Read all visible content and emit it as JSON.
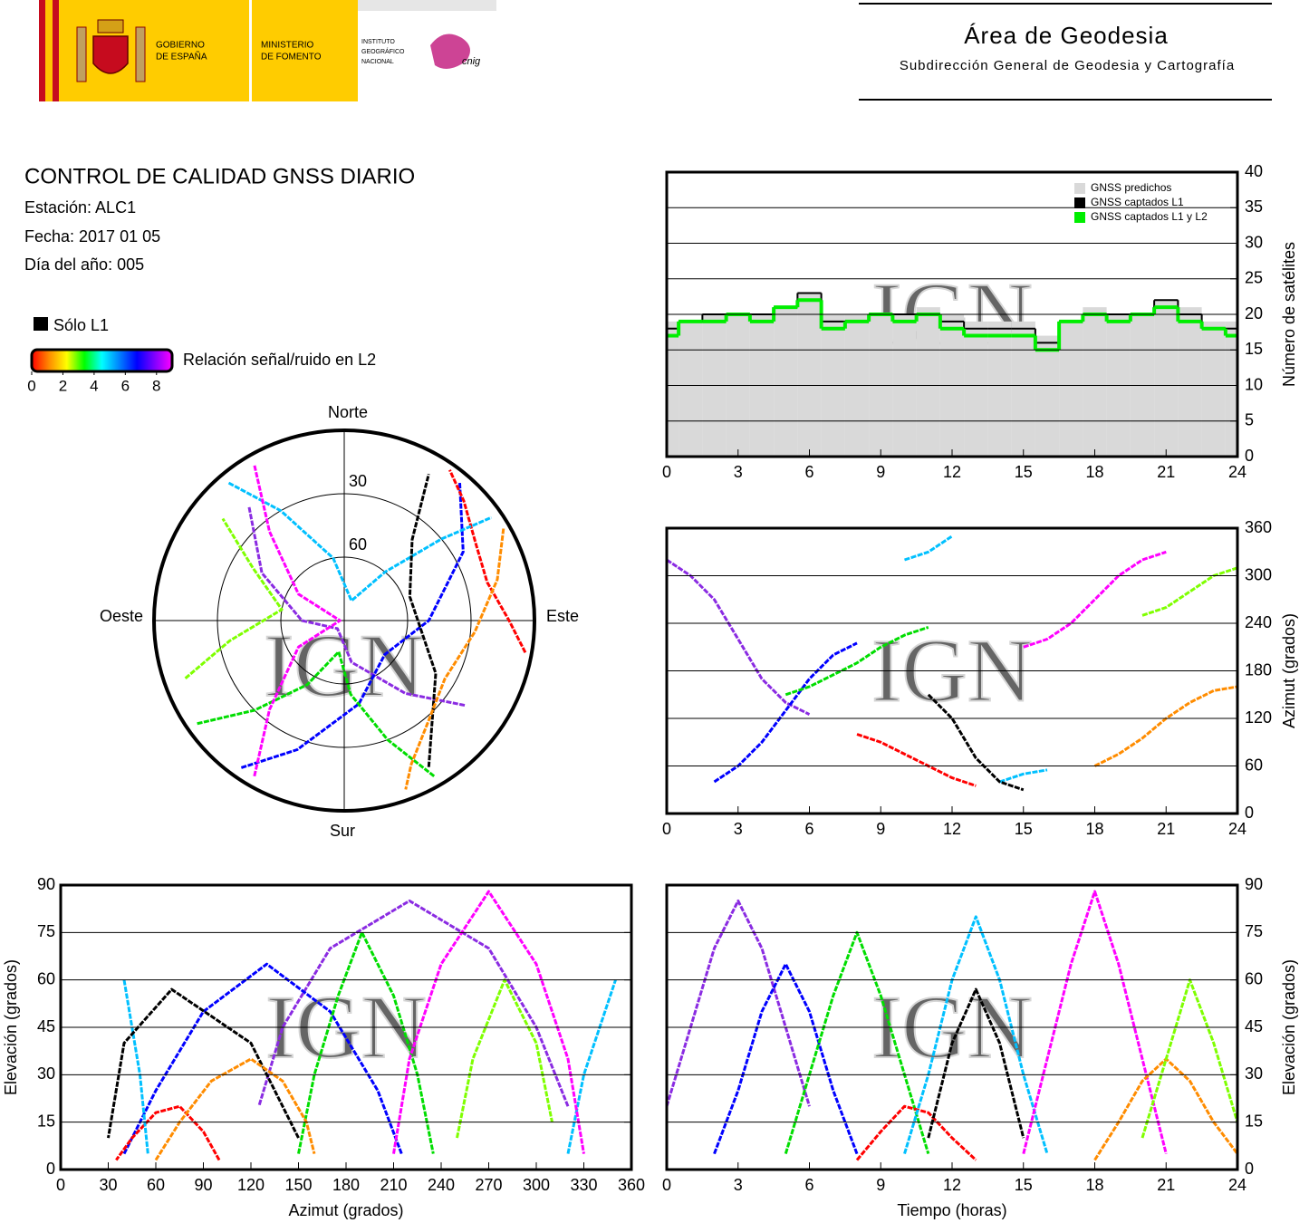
{
  "header": {
    "logos": {
      "gobierno": [
        "GOBIERNO",
        "DE ESPAÑA"
      ],
      "ministerio": [
        "MINISTERIO",
        "DE FOMENTO"
      ],
      "instituto": [
        "INSTITUTO",
        "GEOGRÁFICO",
        "NACIONAL"
      ],
      "cnig": "cnig"
    },
    "title": "Área de Geodesia",
    "subtitle": "Subdirección General de Geodesia y Cartografía"
  },
  "report": {
    "title": "CONTROL DE CALIDAD GNSS DIARIO",
    "lines": [
      "Estación: ALC1",
      "Fecha: 2017 01 05",
      "Día del año: 005"
    ],
    "l1_only": "Sólo L1",
    "colorbar": {
      "label": "Relación señal/ruido en L2",
      "lim": [
        0,
        9
      ],
      "ticks": [
        0,
        2,
        4,
        6,
        8
      ],
      "colors": [
        "#ff0000",
        "#ff8c00",
        "#ffff00",
        "#00ff00",
        "#00ffff",
        "#0080ff",
        "#0000ff",
        "#8000ff",
        "#ff00ff"
      ]
    }
  },
  "chart_data": [
    {
      "type": "step",
      "x": [
        0,
        1,
        2,
        3,
        4,
        5,
        6,
        7,
        8,
        9,
        10,
        11,
        12,
        13,
        14,
        15,
        16,
        17,
        18,
        19,
        20,
        21,
        22,
        23,
        24
      ],
      "xlim": [
        0,
        24
      ],
      "xticks": [
        0,
        3,
        6,
        9,
        12,
        15,
        18,
        21,
        24
      ],
      "ylim": [
        0,
        40
      ],
      "yticks": [
        0,
        5,
        10,
        15,
        20,
        25,
        30,
        35,
        40
      ],
      "grid": true,
      "y_label": "Número de satélites",
      "watermark": "IGN",
      "series": [
        {
          "name": "GNSS predichos",
          "color": "#d9d9d9",
          "area": true,
          "values": [
            19,
            19,
            20,
            20,
            20,
            21,
            23,
            20,
            20,
            20,
            20,
            21,
            20,
            19,
            19,
            19,
            17,
            19,
            21,
            20,
            20,
            22,
            21,
            19,
            19
          ]
        },
        {
          "name": "GNSS captados L1",
          "color": "#000000",
          "values": [
            18,
            19,
            20,
            20,
            20,
            21,
            23,
            19,
            19,
            20,
            20,
            20,
            19,
            18,
            18,
            18,
            16,
            19,
            20,
            20,
            20,
            22,
            20,
            18,
            18
          ]
        },
        {
          "name": "GNSS captados L1 y L2",
          "color": "#00ee00",
          "values": [
            17,
            19,
            19,
            20,
            19,
            21,
            22,
            18,
            19,
            20,
            19,
            20,
            18,
            17,
            17,
            17,
            15,
            19,
            20,
            19,
            20,
            21,
            19,
            18,
            17
          ]
        }
      ]
    },
    {
      "type": "track",
      "xlim": [
        0,
        24
      ],
      "xticks": [
        0,
        3,
        6,
        9,
        12,
        15,
        18,
        21,
        24
      ],
      "ylim": [
        0,
        360
      ],
      "yticks": [
        0,
        60,
        120,
        180,
        240,
        300,
        360
      ],
      "grid": true,
      "y_label": "Azimut (grados)",
      "watermark": "IGN",
      "tracks": [
        {
          "color": "#8a2be2",
          "x": [
            0,
            1,
            2,
            3,
            4,
            5,
            6
          ],
          "y": [
            320,
            300,
            270,
            220,
            170,
            140,
            125
          ]
        },
        {
          "color": "#0000ff",
          "x": [
            2,
            3,
            4,
            5,
            6,
            7,
            8
          ],
          "y": [
            40,
            60,
            90,
            130,
            170,
            200,
            215
          ]
        },
        {
          "color": "#00dd00",
          "x": [
            5,
            6,
            7,
            8,
            9,
            10,
            11
          ],
          "y": [
            150,
            160,
            175,
            190,
            210,
            225,
            235
          ]
        },
        {
          "color": "#ff0000",
          "x": [
            8,
            9,
            10,
            11,
            12,
            13
          ],
          "y": [
            100,
            90,
            75,
            60,
            45,
            35
          ]
        },
        {
          "color": "#00c0ff",
          "x": [
            10,
            11,
            12,
            13,
            14,
            15,
            16
          ],
          "y": [
            320,
            330,
            350,
            null,
            40,
            50,
            55
          ]
        },
        {
          "color": "#000000",
          "x": [
            11,
            12,
            13,
            14,
            15
          ],
          "y": [
            150,
            120,
            70,
            40,
            30
          ]
        },
        {
          "color": "#ff00ff",
          "x": [
            15,
            16,
            17,
            18,
            19,
            20,
            21
          ],
          "y": [
            210,
            220,
            240,
            270,
            300,
            320,
            330
          ]
        },
        {
          "color": "#ff8c00",
          "x": [
            18,
            19,
            20,
            21,
            22,
            23,
            24
          ],
          "y": [
            60,
            75,
            95,
            120,
            140,
            155,
            160
          ]
        },
        {
          "color": "#7fff00",
          "x": [
            20,
            21,
            22,
            23,
            24
          ],
          "y": [
            250,
            260,
            280,
            300,
            310
          ]
        }
      ]
    },
    {
      "type": "polar",
      "labels": {
        "north": "Norte",
        "south": "Sur",
        "east": "Este",
        "west": "Oeste"
      },
      "rlim": [
        90,
        0
      ],
      "rticks": [
        30,
        60
      ],
      "watermark": "IGN",
      "tracks": [
        {
          "color": "#8a2be2",
          "x": [
            320,
            300,
            270,
            220,
            170,
            140,
            125
          ],
          "y": [
            20,
            45,
            70,
            85,
            70,
            45,
            20
          ]
        },
        {
          "color": "#0000ff",
          "x": [
            40,
            60,
            90,
            130,
            170,
            200,
            215
          ],
          "y": [
            5,
            25,
            50,
            65,
            50,
            25,
            5
          ]
        },
        {
          "color": "#00dd00",
          "x": [
            150,
            160,
            175,
            190,
            210,
            225,
            235
          ],
          "y": [
            5,
            30,
            55,
            75,
            55,
            30,
            5
          ]
        },
        {
          "color": "#ff0000",
          "x": [
            100,
            90,
            75,
            60,
            45,
            35
          ],
          "y": [
            3,
            12,
            20,
            18,
            10,
            3
          ]
        },
        {
          "color": "#00c0ff",
          "x": [
            320,
            330,
            350,
            20,
            40,
            50,
            55
          ],
          "y": [
            5,
            30,
            60,
            80,
            60,
            30,
            5
          ]
        },
        {
          "color": "#000000",
          "x": [
            150,
            120,
            70,
            40,
            30
          ],
          "y": [
            10,
            40,
            57,
            40,
            10
          ]
        },
        {
          "color": "#ff00ff",
          "x": [
            210,
            220,
            240,
            270,
            300,
            320,
            330
          ],
          "y": [
            5,
            35,
            65,
            88,
            65,
            35,
            5
          ]
        },
        {
          "color": "#ff8c00",
          "x": [
            60,
            75,
            95,
            120,
            140,
            155,
            160
          ],
          "y": [
            3,
            15,
            28,
            35,
            28,
            15,
            5
          ]
        },
        {
          "color": "#7fff00",
          "x": [
            250,
            260,
            280,
            300,
            310
          ],
          "y": [
            10,
            35,
            60,
            40,
            15
          ]
        }
      ]
    },
    {
      "type": "track",
      "xlim": [
        0,
        360
      ],
      "xticks": [
        0,
        30,
        60,
        90,
        120,
        150,
        180,
        210,
        240,
        270,
        300,
        330,
        360
      ],
      "ylim": [
        0,
        90
      ],
      "yticks": [
        0,
        15,
        30,
        45,
        60,
        75,
        90
      ],
      "grid": true,
      "x_label": "Azimut (grados)",
      "y_label": "Elevación (grados)",
      "watermark": "IGN",
      "tracks": [
        {
          "color": "#8a2be2",
          "x": [
            320,
            300,
            270,
            220,
            170,
            140,
            125
          ],
          "y": [
            20,
            45,
            70,
            85,
            70,
            45,
            20
          ]
        },
        {
          "color": "#0000ff",
          "x": [
            40,
            60,
            90,
            130,
            170,
            200,
            215
          ],
          "y": [
            5,
            25,
            50,
            65,
            50,
            25,
            5
          ]
        },
        {
          "color": "#00dd00",
          "x": [
            150,
            160,
            175,
            190,
            210,
            225,
            235
          ],
          "y": [
            5,
            30,
            55,
            75,
            55,
            30,
            5
          ]
        },
        {
          "color": "#ff0000",
          "x": [
            100,
            90,
            75,
            60,
            45,
            35
          ],
          "y": [
            3,
            12,
            20,
            18,
            10,
            3
          ]
        },
        {
          "color": "#00c0ff",
          "x": [
            320,
            330,
            350,
            null,
            40,
            50,
            55
          ],
          "y": [
            5,
            30,
            60,
            80,
            60,
            30,
            5
          ]
        },
        {
          "color": "#000000",
          "x": [
            150,
            120,
            70,
            40,
            30
          ],
          "y": [
            10,
            40,
            57,
            40,
            10
          ]
        },
        {
          "color": "#ff00ff",
          "x": [
            210,
            220,
            240,
            270,
            300,
            320,
            330
          ],
          "y": [
            5,
            35,
            65,
            88,
            65,
            35,
            5
          ]
        },
        {
          "color": "#ff8c00",
          "x": [
            60,
            75,
            95,
            120,
            140,
            155,
            160
          ],
          "y": [
            3,
            15,
            28,
            35,
            28,
            15,
            5
          ]
        },
        {
          "color": "#7fff00",
          "x": [
            250,
            260,
            280,
            300,
            310
          ],
          "y": [
            10,
            35,
            60,
            40,
            15
          ]
        }
      ]
    },
    {
      "type": "track",
      "xlim": [
        0,
        24
      ],
      "xticks": [
        0,
        3,
        6,
        9,
        12,
        15,
        18,
        21,
        24
      ],
      "ylim": [
        0,
        90
      ],
      "yticks": [
        0,
        15,
        30,
        45,
        60,
        75,
        90
      ],
      "grid": true,
      "x_label": "Tiempo (horas)",
      "y_label": "Elevación (grados)",
      "watermark": "IGN",
      "tracks": [
        {
          "color": "#8a2be2",
          "x": [
            0,
            1,
            2,
            3,
            4,
            5,
            6
          ],
          "y": [
            20,
            45,
            70,
            85,
            70,
            45,
            20
          ]
        },
        {
          "color": "#0000ff",
          "x": [
            2,
            3,
            4,
            5,
            6,
            7,
            8
          ],
          "y": [
            5,
            25,
            50,
            65,
            50,
            25,
            5
          ]
        },
        {
          "color": "#00dd00",
          "x": [
            5,
            6,
            7,
            8,
            9,
            10,
            11
          ],
          "y": [
            5,
            30,
            55,
            75,
            55,
            30,
            5
          ]
        },
        {
          "color": "#ff0000",
          "x": [
            8,
            9,
            10,
            11,
            12,
            13
          ],
          "y": [
            3,
            12,
            20,
            18,
            10,
            3
          ]
        },
        {
          "color": "#00c0ff",
          "x": [
            10,
            11,
            12,
            13,
            14,
            15,
            16
          ],
          "y": [
            5,
            30,
            60,
            80,
            60,
            30,
            5
          ]
        },
        {
          "color": "#000000",
          "x": [
            11,
            12,
            13,
            14,
            15
          ],
          "y": [
            10,
            40,
            57,
            40,
            10
          ]
        },
        {
          "color": "#ff00ff",
          "x": [
            15,
            16,
            17,
            18,
            19,
            20,
            21
          ],
          "y": [
            5,
            35,
            65,
            88,
            65,
            35,
            5
          ]
        },
        {
          "color": "#ff8c00",
          "x": [
            18,
            19,
            20,
            21,
            22,
            23,
            24
          ],
          "y": [
            3,
            15,
            28,
            35,
            28,
            15,
            5
          ]
        },
        {
          "color": "#7fff00",
          "x": [
            20,
            21,
            22,
            23,
            24
          ],
          "y": [
            10,
            35,
            60,
            40,
            15
          ]
        }
      ]
    }
  ]
}
